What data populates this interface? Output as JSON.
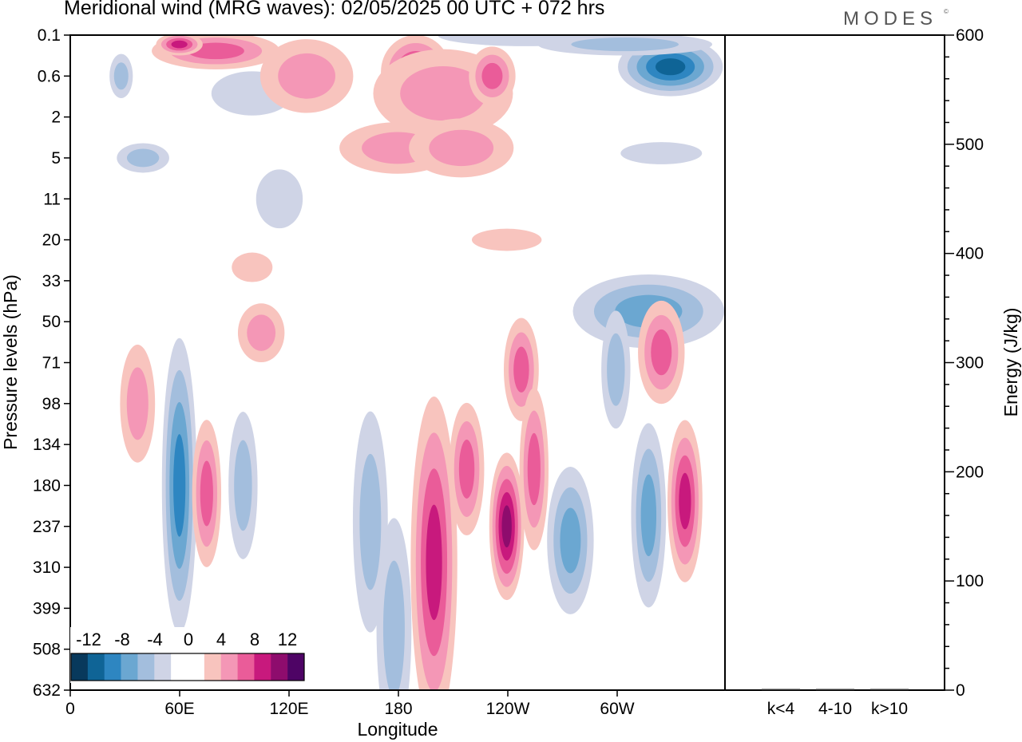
{
  "title": "Meridional wind (MRG waves):  02/05/2025  00 UTC  + 072 hrs",
  "brand": "MODES",
  "brand_mark": "©",
  "colors": {
    "neg": [
      "#08395c",
      "#0f6496",
      "#2e86c1",
      "#6ba7d1",
      "#a3bedd",
      "#cfd4e6"
    ],
    "pos": [
      "#f8c4be",
      "#f497b6",
      "#ea5c99",
      "#c8197d",
      "#8e0c6d",
      "#4e0465"
    ]
  },
  "chart_data": [
    {
      "type": "heatmap",
      "xlabel": "Longitude",
      "ylabel": "Pressure levels (hPa)",
      "x_ticks": [
        "0",
        "60E",
        "120E",
        "180",
        "120W",
        "60W"
      ],
      "y_ticks": [
        "0.1",
        "0.6",
        "2",
        "5",
        "11",
        "20",
        "33",
        "50",
        "71",
        "98",
        "134",
        "180",
        "237",
        "310",
        "399",
        "508",
        "632"
      ],
      "colorbar": {
        "labels": [
          "-12",
          "-8",
          "-4",
          "0",
          "4",
          "8",
          "12"
        ],
        "levels": [
          -14,
          -12,
          -10,
          -8,
          -6,
          -4,
          -2,
          2,
          4,
          6,
          8,
          10,
          12,
          14
        ]
      },
      "values_description_free": true,
      "blobs": [
        {
          "lon": 28,
          "lev": 0.6,
          "v": -3,
          "rx": 4,
          "ry": 0.6
        },
        {
          "lon": 80,
          "lev": 0.2,
          "v": 5,
          "rx": 22,
          "ry": 0.5
        },
        {
          "lon": 60,
          "lev": 0.15,
          "v": 7,
          "rx": 8,
          "ry": 0.3
        },
        {
          "lon": 100,
          "lev": 1.0,
          "v": -1,
          "rx": 14,
          "ry": 0.6
        },
        {
          "lon": 130,
          "lev": 0.6,
          "v": 3,
          "rx": 16,
          "ry": 1.0
        },
        {
          "lon": 190,
          "lev": 0.5,
          "v": 8,
          "rx": 12,
          "ry": 1.0
        },
        {
          "lon": 205,
          "lev": 1.0,
          "v": 3,
          "rx": 24,
          "ry": 1.2
        },
        {
          "lon": 232,
          "lev": 0.6,
          "v": 6,
          "rx": 8,
          "ry": 0.8
        },
        {
          "lon": 250,
          "lev": 0.1,
          "v": -2,
          "rx": 30,
          "ry": 0.3
        },
        {
          "lon": 330,
          "lev": 0.4,
          "v": -10,
          "rx": 18,
          "ry": 0.8
        },
        {
          "lon": 305,
          "lev": 0.15,
          "v": -4,
          "rx": 30,
          "ry": 0.3
        },
        {
          "lon": 180,
          "lev": 4,
          "v": 3,
          "rx": 20,
          "ry": 0.7
        },
        {
          "lon": 215,
          "lev": 4,
          "v": 3,
          "rx": 18,
          "ry": 0.8
        },
        {
          "lon": 40,
          "lev": 5,
          "v": -3,
          "rx": 9,
          "ry": 0.4
        },
        {
          "lon": 325,
          "lev": 4.5,
          "v": -2,
          "rx": 14,
          "ry": 0.3
        },
        {
          "lon": 115,
          "lev": 11,
          "v": -2,
          "rx": 8,
          "ry": 0.8
        },
        {
          "lon": 240,
          "lev": 20,
          "v": 2,
          "rx": 12,
          "ry": 0.3
        },
        {
          "lon": 100,
          "lev": 28,
          "v": 2,
          "rx": 7,
          "ry": 0.4
        },
        {
          "lon": 318,
          "lev": 45,
          "v": -6,
          "rx": 26,
          "ry": 1.0
        },
        {
          "lon": 105,
          "lev": 55,
          "v": 3,
          "rx": 8,
          "ry": 0.8
        },
        {
          "lon": 325,
          "lev": 65,
          "v": 6,
          "rx": 8,
          "ry": 1.4
        },
        {
          "lon": 37,
          "lev": 98,
          "v": 4,
          "rx": 6,
          "ry": 1.6
        },
        {
          "lon": 60,
          "lev": 180,
          "v": -7,
          "rx": 6,
          "ry": 4.0
        },
        {
          "lon": 75,
          "lev": 190,
          "v": 6,
          "rx": 5,
          "ry": 2.0
        },
        {
          "lon": 95,
          "lev": 180,
          "v": -4,
          "rx": 5,
          "ry": 2.0
        },
        {
          "lon": 165,
          "lev": 230,
          "v": -4,
          "rx": 6,
          "ry": 3.0
        },
        {
          "lon": 200,
          "lev": 300,
          "v": 7,
          "rx": 8,
          "ry": 4.5
        },
        {
          "lon": 218,
          "lev": 160,
          "v": 6,
          "rx": 6,
          "ry": 1.8
        },
        {
          "lon": 240,
          "lev": 237,
          "v": 10,
          "rx": 6,
          "ry": 2.0
        },
        {
          "lon": 248,
          "lev": 75,
          "v": 5,
          "rx": 6,
          "ry": 1.4
        },
        {
          "lon": 255,
          "lev": 160,
          "v": 6,
          "rx": 5,
          "ry": 2.2
        },
        {
          "lon": 275,
          "lev": 260,
          "v": -6,
          "rx": 8,
          "ry": 2.0
        },
        {
          "lon": 300,
          "lev": 75,
          "v": -4,
          "rx": 5,
          "ry": 1.6
        },
        {
          "lon": 318,
          "lev": 220,
          "v": -6,
          "rx": 6,
          "ry": 2.5
        },
        {
          "lon": 338,
          "lev": 200,
          "v": 7,
          "rx": 6,
          "ry": 2.2
        },
        {
          "lon": 178,
          "lev": 450,
          "v": -3,
          "rx": 6,
          "ry": 3.0
        }
      ]
    },
    {
      "type": "bar",
      "categories": [
        "k<4",
        "4-10",
        "k>10"
      ],
      "values": [
        0,
        0,
        0
      ],
      "ylabel": "Energy (J/kg)",
      "ylim": [
        0,
        600
      ],
      "y_ticks": [
        "0",
        "100",
        "200",
        "300",
        "400",
        "500",
        "600"
      ]
    }
  ]
}
